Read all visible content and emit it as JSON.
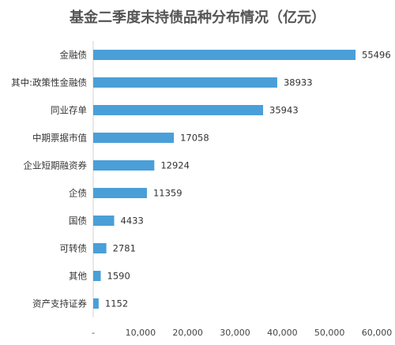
{
  "chart_data": {
    "type": "bar",
    "orientation": "horizontal",
    "title": "基金二季度末持债品种分布情况（亿元）",
    "categories": [
      "金融债",
      "其中:政策性金融债",
      "同业存单",
      "中期票据市值",
      "企业短期融资券",
      "企债",
      "国债",
      "可转债",
      "其他",
      "资产支持证券"
    ],
    "values": [
      55496,
      38933,
      35943,
      17058,
      12924,
      11359,
      4433,
      2781,
      1590,
      1152
    ],
    "xlim": [
      0,
      60000
    ],
    "xticks": [
      "-",
      "10,000",
      "20,000",
      "30,000",
      "40,000",
      "50,000",
      "60,000"
    ],
    "grid": false,
    "legend": "none",
    "bar_color": "#4a9fd8"
  }
}
